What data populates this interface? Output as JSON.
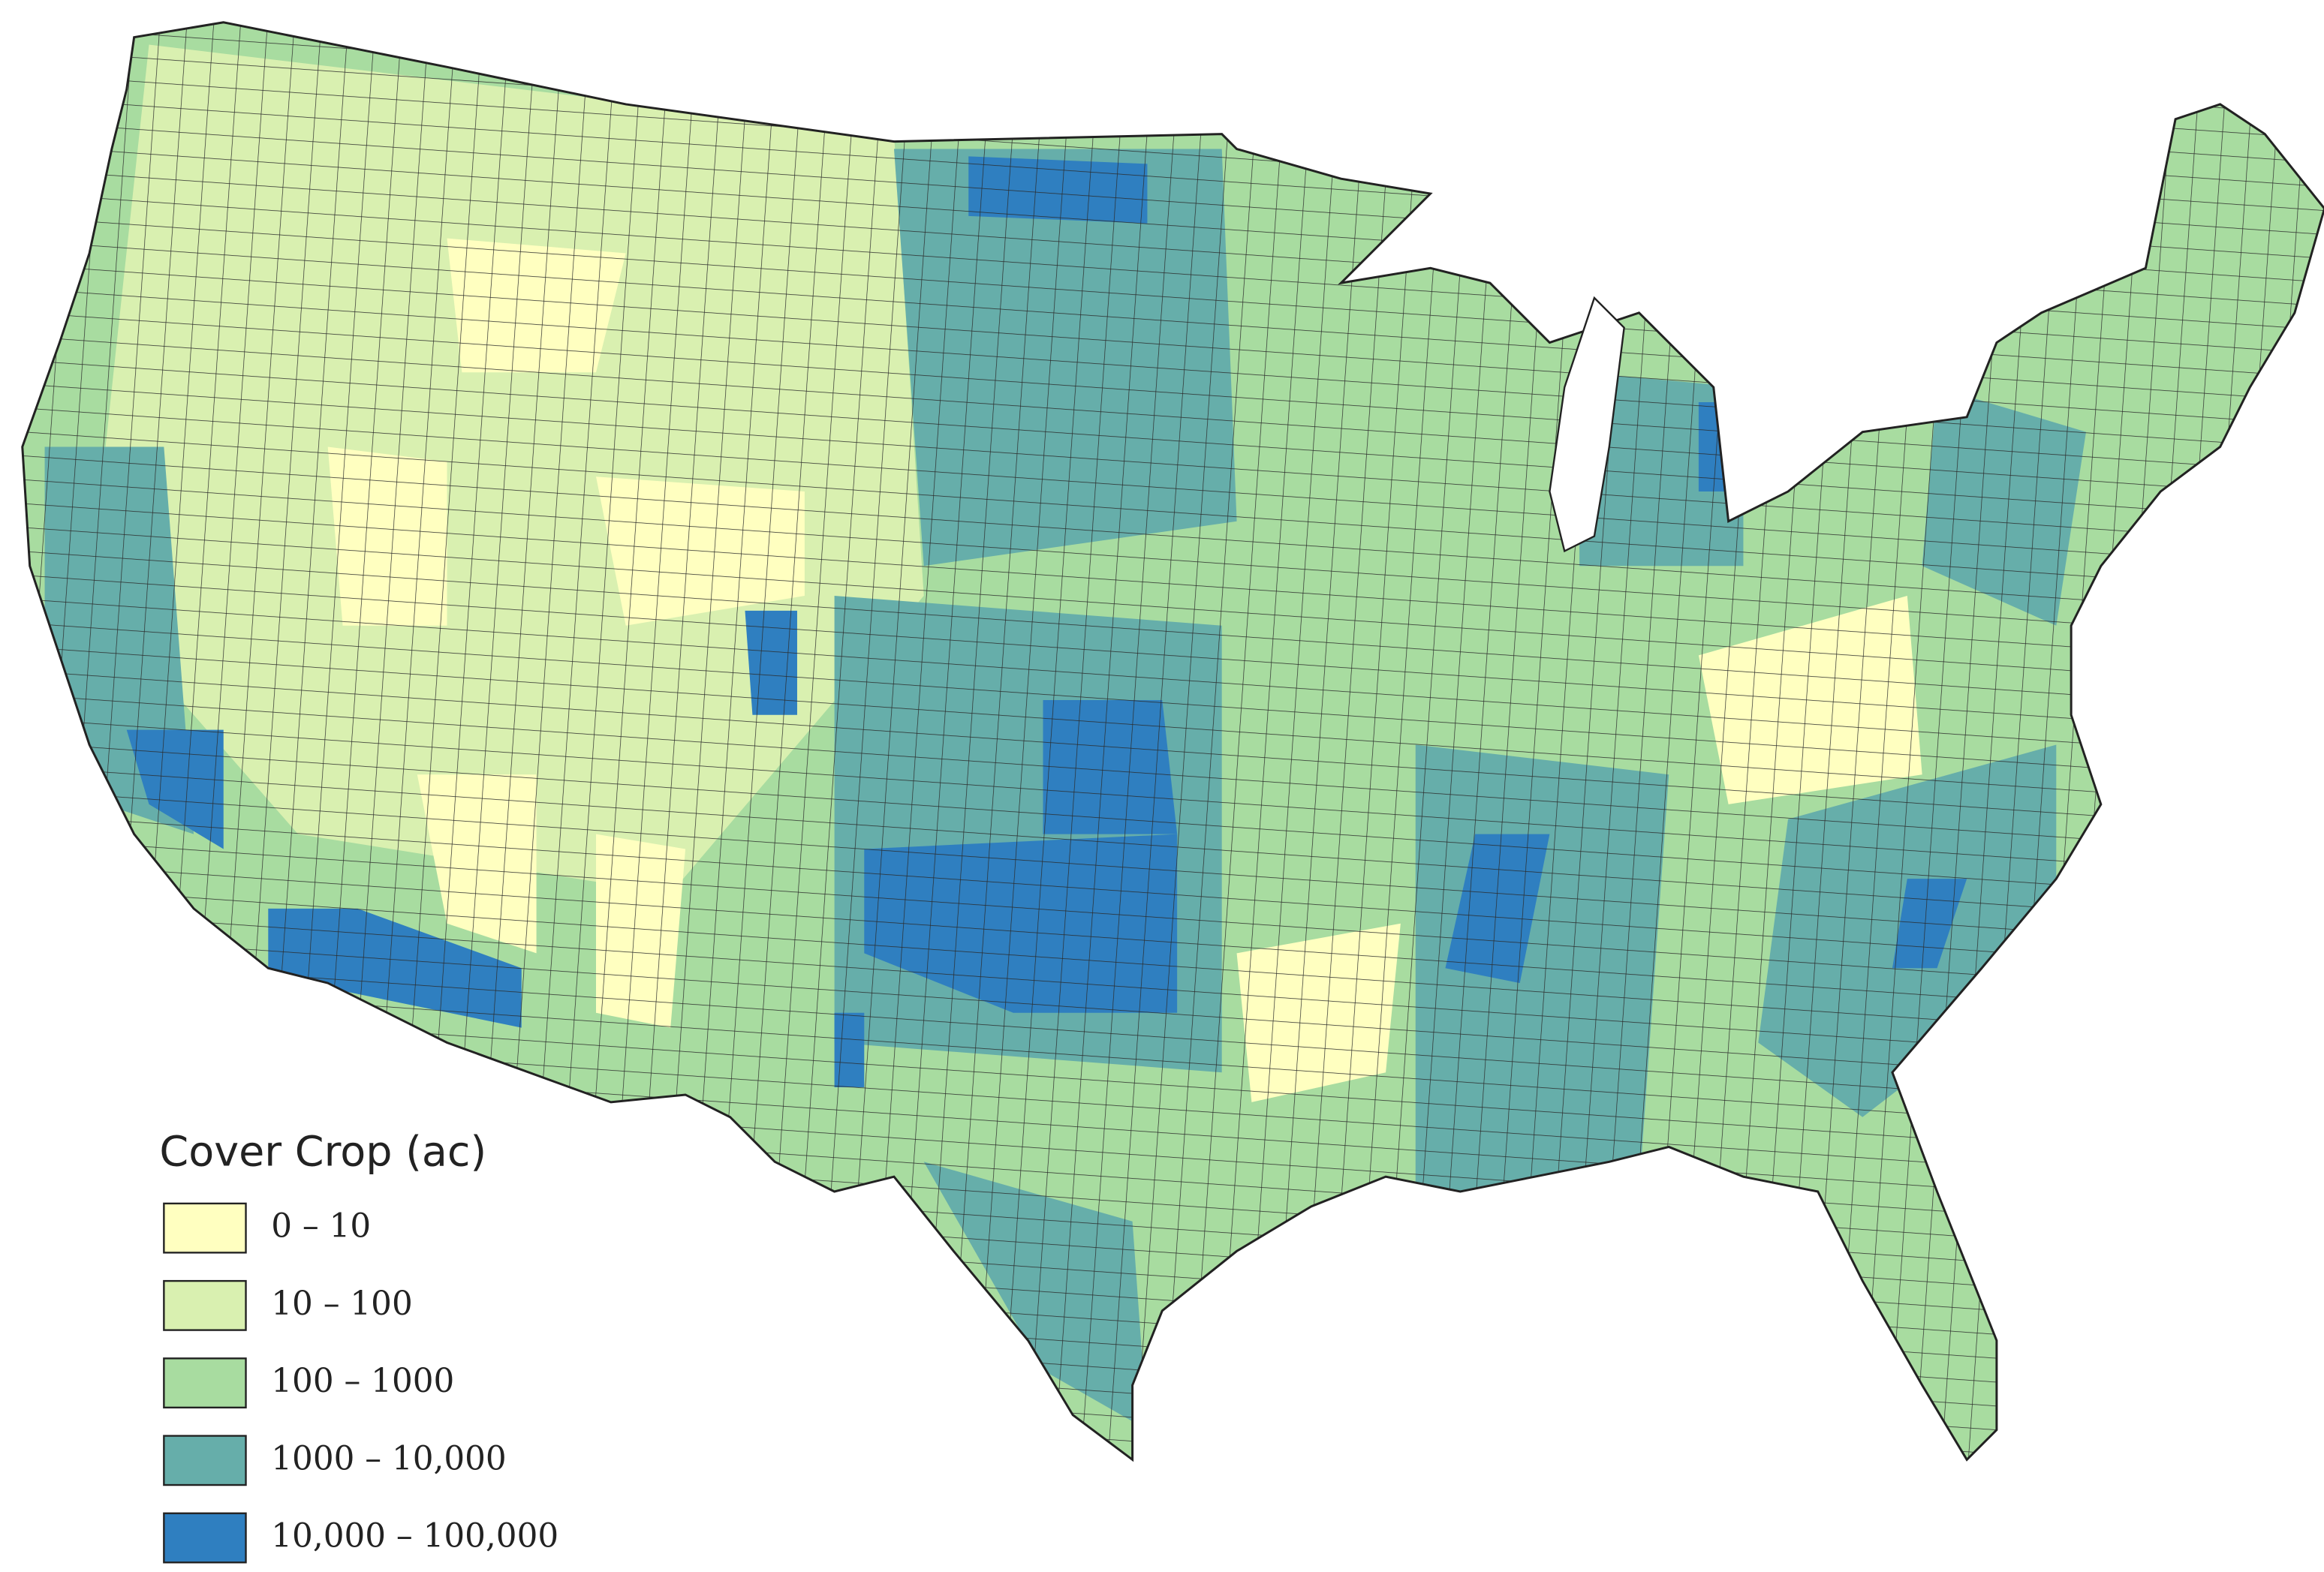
{
  "legend": {
    "title": "Cover Crop (ac)",
    "items": [
      {
        "label": "0 – 10",
        "color": "#ffffc0"
      },
      {
        "label": "10 – 100",
        "color": "#d9f0b0"
      },
      {
        "label": "100 – 1000",
        "color": "#a8dca0"
      },
      {
        "label": "1000 – 10,000",
        "color": "#66aeaa"
      },
      {
        "label": "10,000 – 100,000",
        "color": "#2f7fc0"
      }
    ]
  }
}
